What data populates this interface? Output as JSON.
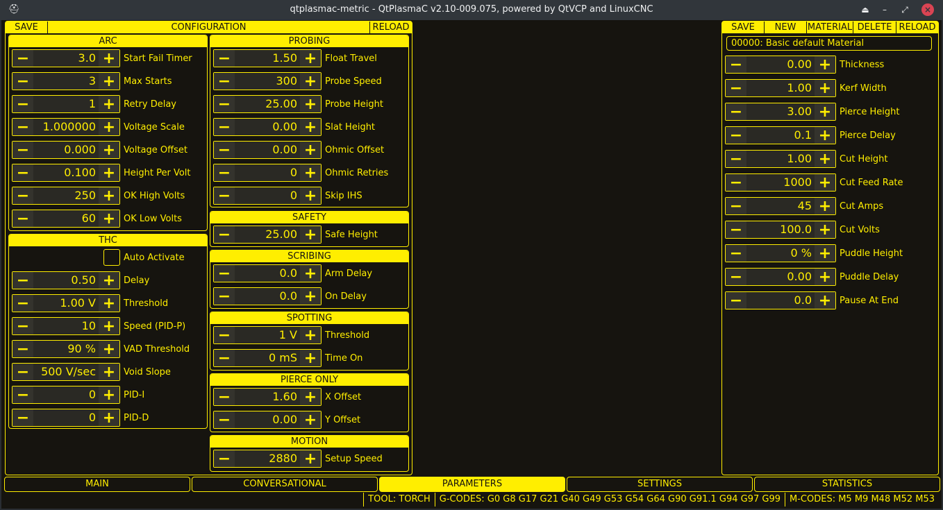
{
  "window": {
    "title": "qtplasmac-metric - QtPlasmaC v2.10-009.075, powered by QtVCP and LinuxCNC",
    "controls": [
      "shade-icon",
      "minimize-icon",
      "restore-icon",
      "close-icon"
    ]
  },
  "colors": {
    "accent": "#ffee00",
    "background": "#16140f",
    "titlebar": "#31363b"
  },
  "config": {
    "save": "SAVE",
    "title": "CONFIGURATION",
    "reload": "RELOAD"
  },
  "groups": [
    {
      "title": "ARC",
      "rows": [
        {
          "value": "3.0",
          "label": "Start Fail Timer"
        },
        {
          "value": "3",
          "label": "Max Starts"
        },
        {
          "value": "1",
          "label": "Retry Delay"
        },
        {
          "value": "1.000000",
          "label": "Voltage Scale"
        },
        {
          "value": "0.000",
          "label": "Voltage Offset"
        },
        {
          "value": "0.100",
          "label": "Height Per Volt"
        },
        {
          "value": "250",
          "label": "OK High Volts"
        },
        {
          "value": "60",
          "label": "OK Low Volts"
        }
      ]
    },
    {
      "title": "THC",
      "rows": [
        {
          "checkbox": true,
          "checked": false,
          "label": "Auto Activate"
        },
        {
          "value": "0.50",
          "label": "Delay"
        },
        {
          "value": "1.00 V",
          "label": "Threshold"
        },
        {
          "value": "10",
          "label": "Speed (PID-P)"
        },
        {
          "value": "90 %",
          "label": "VAD Threshold"
        },
        {
          "value": "500 V/sec",
          "label": "Void Slope"
        },
        {
          "value": "0",
          "label": "PID-I"
        },
        {
          "value": "0",
          "label": "PID-D"
        }
      ]
    },
    {
      "title": "PROBING",
      "rows": [
        {
          "value": "1.50",
          "label": "Float Travel"
        },
        {
          "value": "300",
          "label": "Probe Speed"
        },
        {
          "value": "25.00",
          "label": "Probe Height"
        },
        {
          "value": "0.00",
          "label": "Slat Height"
        },
        {
          "value": "0.00",
          "label": "Ohmic Offset"
        },
        {
          "value": "0",
          "label": "Ohmic Retries"
        },
        {
          "value": "0",
          "label": "Skip IHS"
        }
      ]
    },
    {
      "title": "SAFETY",
      "rows": [
        {
          "value": "25.00",
          "label": "Safe Height"
        }
      ]
    },
    {
      "title": "SCRIBING",
      "rows": [
        {
          "value": "0.0",
          "label": "Arm Delay"
        },
        {
          "value": "0.0",
          "label": "On Delay"
        }
      ]
    },
    {
      "title": "SPOTTING",
      "rows": [
        {
          "value": "1 V",
          "label": "Threshold"
        },
        {
          "value": "0 mS",
          "label": "Time On"
        }
      ]
    },
    {
      "title": "PIERCE ONLY",
      "rows": [
        {
          "value": "1.60",
          "label": "X Offset"
        },
        {
          "value": "0.00",
          "label": "Y Offset"
        }
      ]
    },
    {
      "title": "MOTION",
      "rows": [
        {
          "value": "2880",
          "label": "Setup Speed"
        }
      ]
    }
  ],
  "material": {
    "buttons": [
      "SAVE",
      "NEW",
      "MATERIAL",
      "DELETE",
      "RELOAD"
    ],
    "selected": "00000: Basic default Material",
    "rows": [
      {
        "value": "0.00",
        "label": "Thickness"
      },
      {
        "value": "1.00",
        "label": "Kerf Width"
      },
      {
        "value": "3.00",
        "label": "Pierce Height"
      },
      {
        "value": "0.1",
        "label": "Pierce Delay"
      },
      {
        "value": "1.00",
        "label": "Cut Height"
      },
      {
        "value": "1000",
        "label": "Cut Feed Rate"
      },
      {
        "value": "45",
        "label": "Cut Amps"
      },
      {
        "value": "100.0",
        "label": "Cut Volts"
      },
      {
        "value": "0 %",
        "label": "Puddle Height"
      },
      {
        "value": "0.00",
        "label": "Puddle Delay"
      },
      {
        "value": "0.0",
        "label": "Pause At End"
      }
    ]
  },
  "tabs": [
    {
      "label": "MAIN"
    },
    {
      "label": "CONVERSATIONAL"
    },
    {
      "label": "PARAMETERS",
      "active": true
    },
    {
      "label": "SETTINGS"
    },
    {
      "label": "STATISTICS"
    }
  ],
  "status": {
    "tool": "TOOL:  TORCH",
    "gcodes": "G-CODES:  G0 G8 G17 G21 G40 G49 G53 G54 G64 G90 G91.1 G94 G97 G99",
    "mcodes": "M-CODES:  M5 M9 M48 M52 M53"
  }
}
